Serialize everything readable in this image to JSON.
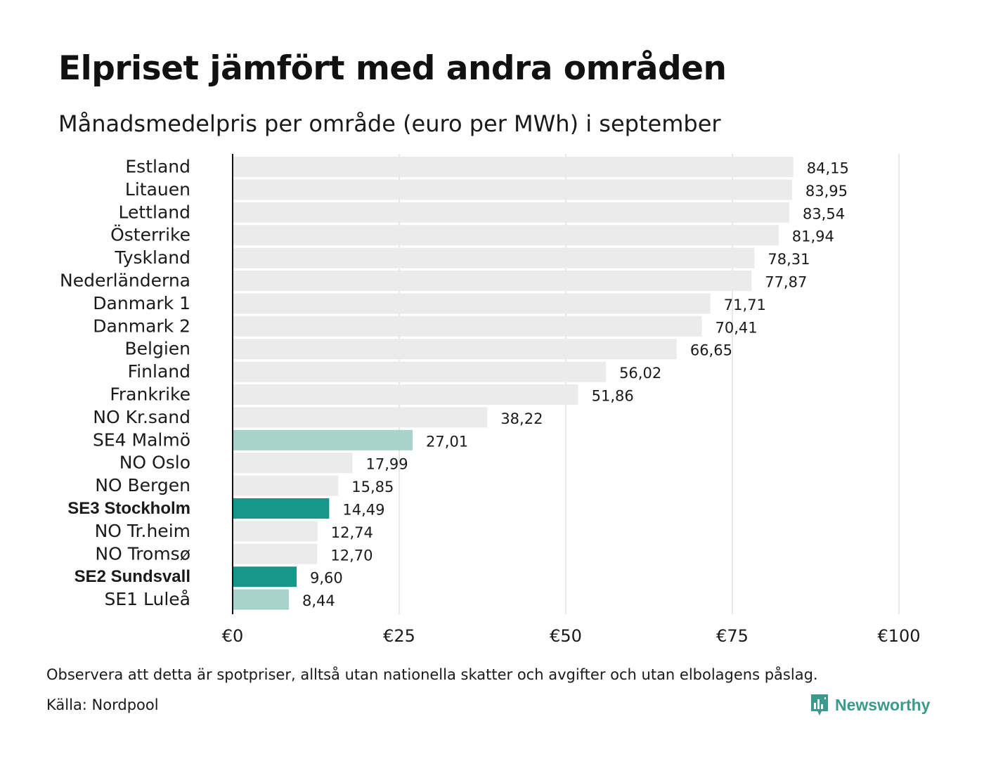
{
  "title": "Elpriset jämfört med andra områden",
  "subtitle": "Månadsmedelpris per område (euro per MWh) i september",
  "note": "Observera att detta är spotpriser, alltså utan nationella skatter och avgifter och utan elbolagens påslag.",
  "source": "Källa: Nordpool",
  "logo": {
    "text": "Newsworthy",
    "icon": "bar-chart-speech-bubble-icon"
  },
  "colors": {
    "bar_default": "#ebebeb",
    "bar_se_dark": "#16978a",
    "bar_se_light": "#a8d2cc",
    "grid": "#d0d0d0",
    "axis": "#111111",
    "logo": "#3a9a8c"
  },
  "chart_data": {
    "type": "bar",
    "orientation": "horizontal",
    "xlim": [
      0,
      100
    ],
    "xticks": [
      0,
      25,
      50,
      75,
      100
    ],
    "xtick_labels": [
      "€0",
      "€25",
      "€50",
      "€75",
      "€100"
    ],
    "grid": true,
    "categories": [
      "Estland",
      "Litauen",
      "Lettland",
      "Österrike",
      "Tyskland",
      "Nederländerna",
      "Danmark 1",
      "Danmark 2",
      "Belgien",
      "Finland",
      "Frankrike",
      "NO Kr.sand",
      "SE4 Malmö",
      "NO Oslo",
      "NO Bergen",
      "SE3 Stockholm",
      "NO Tr.heim",
      "NO Tromsø",
      "SE2 Sundsvall",
      "SE1 Luleå"
    ],
    "values": [
      84.15,
      83.95,
      83.54,
      81.94,
      78.31,
      77.87,
      71.71,
      70.41,
      66.65,
      56.02,
      51.86,
      38.22,
      27.01,
      17.99,
      15.85,
      14.49,
      12.74,
      12.7,
      9.6,
      8.44
    ],
    "value_labels": [
      "84,15",
      "83,95",
      "83,54",
      "81,94",
      "78,31",
      "77,87",
      "71,71",
      "70,41",
      "66,65",
      "56,02",
      "51,86",
      "38,22",
      "27,01",
      "17,99",
      "15,85",
      "14,49",
      "12,74",
      "12,70",
      "9,60",
      "8,44"
    ],
    "highlight": [
      "",
      "",
      "",
      "",
      "",
      "",
      "",
      "",
      "",
      "",
      "",
      "",
      "light",
      "",
      "",
      "dark",
      "",
      "",
      "dark",
      "light"
    ],
    "bold_labels": [
      "SE3 Stockholm",
      "SE2 Sundsvall"
    ]
  }
}
